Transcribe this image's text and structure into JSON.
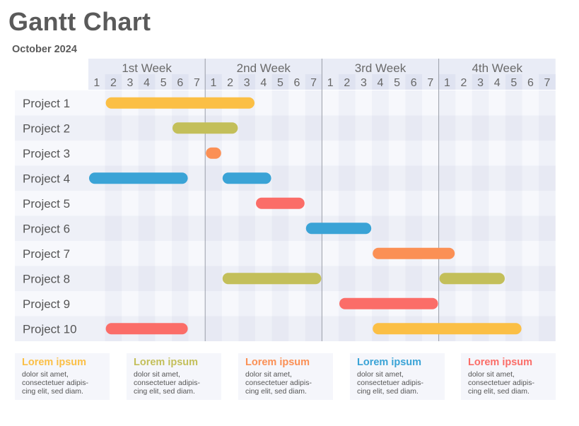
{
  "title": "Gantt Chart",
  "subtitle": "October 2024",
  "chart_data": {
    "type": "gantt",
    "title": "Gantt Chart",
    "subtitle": "October 2024",
    "weeks": [
      "1st Week",
      "2nd Week",
      "3rd Week",
      "4th Week"
    ],
    "days": [
      "1",
      "2",
      "3",
      "4",
      "5",
      "6",
      "7"
    ],
    "tasks": [
      {
        "name": "Project 1",
        "segments": [
          {
            "start": 2,
            "end": 10,
            "color": "#fbbf45"
          }
        ]
      },
      {
        "name": "Project 2",
        "segments": [
          {
            "start": 6,
            "end": 9,
            "color": "#c3bf5a"
          }
        ]
      },
      {
        "name": "Project 3",
        "segments": [
          {
            "start": 8,
            "end": 8,
            "color": "#fb9055"
          }
        ]
      },
      {
        "name": "Project 4",
        "segments": [
          {
            "start": 1,
            "end": 6,
            "color": "#3aa3d6"
          },
          {
            "start": 9,
            "end": 11,
            "color": "#3aa3d6"
          }
        ]
      },
      {
        "name": "Project 5",
        "segments": [
          {
            "start": 11,
            "end": 13,
            "color": "#fb6d68"
          }
        ]
      },
      {
        "name": "Project 6",
        "segments": [
          {
            "start": 14,
            "end": 17,
            "color": "#3aa3d6"
          }
        ]
      },
      {
        "name": "Project 7",
        "segments": [
          {
            "start": 18,
            "end": 22,
            "color": "#fb9055"
          }
        ]
      },
      {
        "name": "Project 8",
        "segments": [
          {
            "start": 9,
            "end": 14,
            "color": "#c3bf5a"
          },
          {
            "start": 22,
            "end": 25,
            "color": "#c3bf5a"
          }
        ]
      },
      {
        "name": "Project 9",
        "segments": [
          {
            "start": 16,
            "end": 21,
            "color": "#fb6d68"
          }
        ]
      },
      {
        "name": "Project 10",
        "segments": [
          {
            "start": 2,
            "end": 6,
            "color": "#fb6d68"
          },
          {
            "start": 18,
            "end": 26,
            "color": "#fbbf45"
          }
        ]
      }
    ]
  },
  "legend": [
    {
      "title": "Lorem ipsum",
      "text": "dolor sit amet,\nconsectetuer adipis-\ncing elit, sed diam.",
      "color": "#fbbf45"
    },
    {
      "title": "Lorem ipsum",
      "text": "dolor sit amet,\nconsectetuer adipis-\ncing elit, sed diam.",
      "color": "#c3bf5a"
    },
    {
      "title": "Lorem ipsum",
      "text": "dolor sit amet,\nconsectetuer adipis-\ncing elit, sed diam.",
      "color": "#fb9055"
    },
    {
      "title": "Lorem ipsum",
      "text": "dolor sit amet,\nconsectetuer adipis-\ncing elit, sed diam.",
      "color": "#3aa3d6"
    },
    {
      "title": "Lorem ipsum",
      "text": "dolor sit amet,\nconsectetuer adipis-\ncing elit, sed diam.",
      "color": "#fb6d68"
    }
  ]
}
